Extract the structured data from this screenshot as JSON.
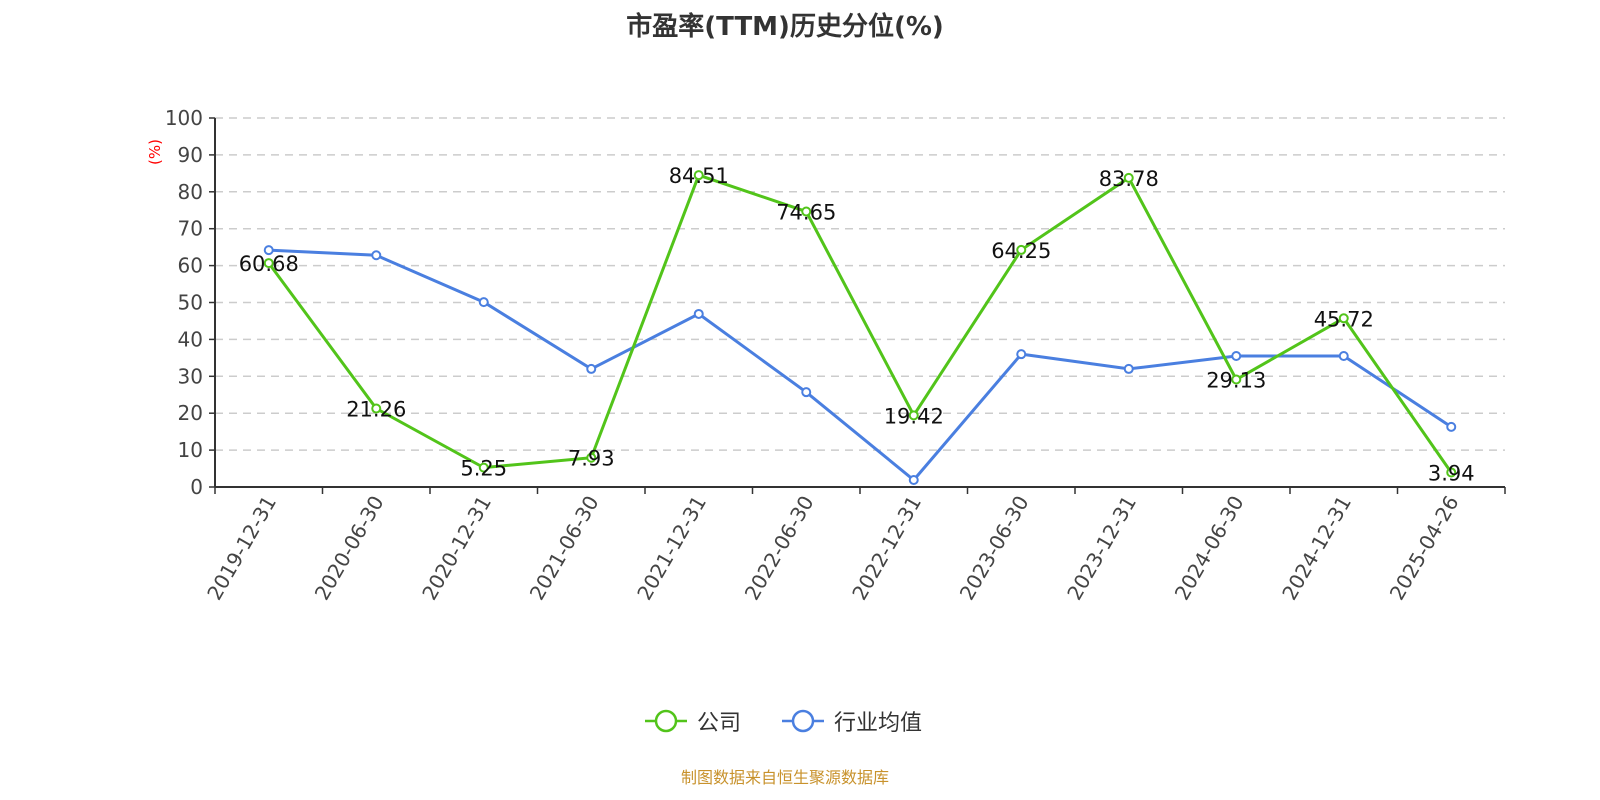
{
  "chart_data": {
    "type": "line",
    "title": "市盈率(TTM)历史分位(%)",
    "ylabel": "(%)",
    "xlabel": "",
    "ylim": [
      0,
      100
    ],
    "yticks": [
      0,
      10,
      20,
      30,
      40,
      50,
      60,
      70,
      80,
      90,
      100
    ],
    "grid": true,
    "legend_position": "bottom",
    "categories": [
      "2019-12-31",
      "2020-06-30",
      "2020-12-31",
      "2021-06-30",
      "2021-12-31",
      "2022-06-30",
      "2022-12-31",
      "2023-06-30",
      "2023-12-31",
      "2024-06-30",
      "2024-12-31",
      "2025-04-26"
    ],
    "series": [
      {
        "name": "公司",
        "color": "#52c41a",
        "show_labels": true,
        "values": [
          60.68,
          21.26,
          5.25,
          7.93,
          84.51,
          74.65,
          19.42,
          64.25,
          83.78,
          29.13,
          45.72,
          3.94
        ]
      },
      {
        "name": "行业均值",
        "color": "#4a7fe0",
        "show_labels": false,
        "values": [
          64.2,
          62.8,
          50.1,
          32.0,
          46.9,
          25.7,
          1.9,
          36.0,
          32.0,
          35.5,
          35.5,
          16.3
        ]
      }
    ]
  },
  "source": "制图数据来自恒生聚源数据库"
}
